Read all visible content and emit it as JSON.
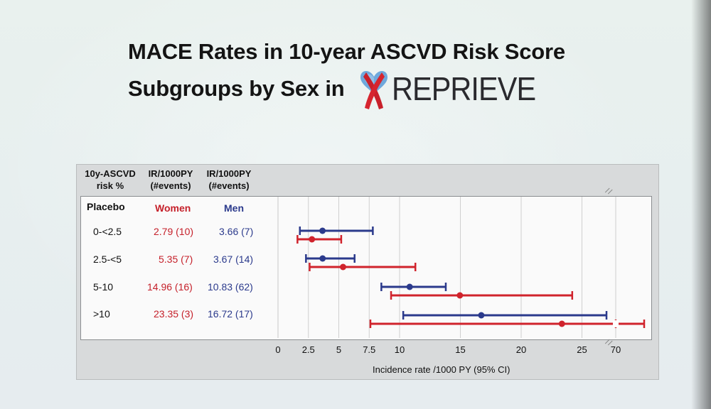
{
  "title": {
    "line1": "MACE Rates in 10-year ASCVD Risk Score",
    "line2": "Subgroups by Sex in",
    "logo_text": "REPRIEVE"
  },
  "table": {
    "headers": {
      "risk": "10y-ASCVD\nrisk %",
      "women": "IR/1000PY\n(#events)",
      "men": "IR/1000PY\n(#events)"
    },
    "group_label": "Placebo",
    "women_label": "Women",
    "men_label": "Men",
    "rows": [
      {
        "risk": "0-<2.5",
        "women": "2.79 (10)",
        "men": "3.66 (7)"
      },
      {
        "risk": "2.5-<5",
        "women": "5.35 (7)",
        "men": "3.67 (14)"
      },
      {
        "risk": "5-10",
        "women": "14.96 (16)",
        "men": "10.83 (62)"
      },
      {
        "risk": ">10",
        "women": "23.35 (3)",
        "men": "16.72 (17)"
      }
    ]
  },
  "colors": {
    "women": "#d0232c",
    "men": "#2b3a8c"
  },
  "chart_data": {
    "type": "forest",
    "xlabel": "Incidence rate /1000 PY (95% CI)",
    "x_ticks": [
      "0",
      "2.5",
      "5",
      "7.5",
      "10",
      "15",
      "20",
      "25",
      "70"
    ],
    "axis_break_between": [
      25,
      70
    ],
    "categories": [
      "0-<2.5",
      "2.5-<5",
      "5-10",
      ">10"
    ],
    "series": [
      {
        "name": "Men",
        "estimates": [
          3.66,
          3.67,
          10.83,
          16.72
        ],
        "lower": [
          1.8,
          2.3,
          8.5,
          10.3
        ],
        "upper": [
          7.8,
          6.3,
          13.8,
          28.0
        ]
      },
      {
        "name": "Women",
        "estimates": [
          2.79,
          5.35,
          14.96,
          23.35
        ],
        "lower": [
          1.6,
          2.6,
          9.3,
          7.6
        ],
        "upper": [
          5.2,
          11.3,
          24.2,
          70.0
        ]
      }
    ]
  }
}
